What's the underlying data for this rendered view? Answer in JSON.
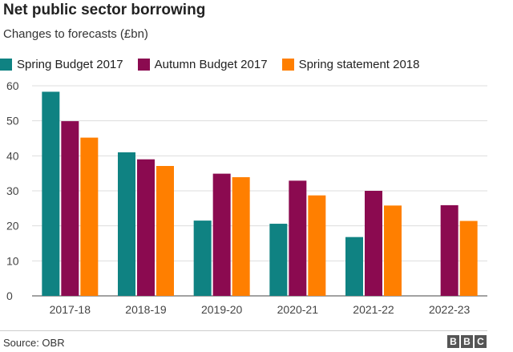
{
  "header": {
    "title": "Net public sector borrowing",
    "subtitle": "Changes to forecasts (£bn)"
  },
  "footer": {
    "source": "Source: OBR",
    "logo_letters": [
      "B",
      "B",
      "C"
    ]
  },
  "chart_data": {
    "type": "bar",
    "title": "Net public sector borrowing",
    "subtitle": "Changes to forecasts (£bn)",
    "categories": [
      "2017-18",
      "2018-19",
      "2019-20",
      "2020-21",
      "2021-22",
      "2022-23"
    ],
    "series": [
      {
        "name": "Spring Budget 2017",
        "color": "#0f8282",
        "values": [
          58.3,
          41.0,
          21.5,
          20.6,
          16.8,
          null
        ]
      },
      {
        "name": "Autumn Budget 2017",
        "color": "#8b0a50",
        "values": [
          49.9,
          39.0,
          34.9,
          32.9,
          30.0,
          25.9
        ]
      },
      {
        "name": "Spring statement 2018",
        "color": "#ff7f00",
        "values": [
          45.2,
          37.1,
          33.9,
          28.7,
          25.8,
          21.4
        ]
      }
    ],
    "ylim": [
      0,
      60
    ],
    "yticks": [
      0,
      10,
      20,
      30,
      40,
      50,
      60
    ],
    "grid": true,
    "legend": "top-left"
  }
}
